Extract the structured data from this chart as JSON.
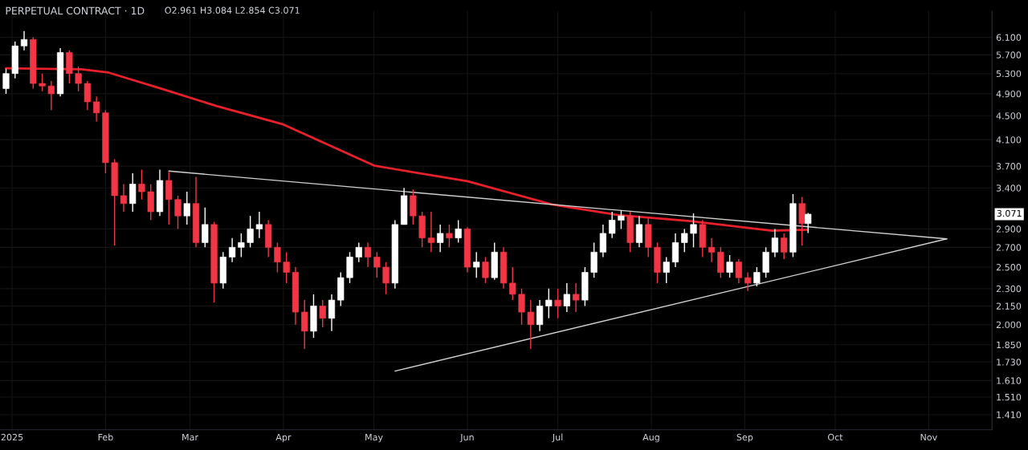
{
  "chart_data": {
    "type": "candlestick",
    "title": "PERPETUAL CONTRACT · 1D",
    "annotations": [
      "O2.961 H3.084 L2.854 C3.071",
      "3.071"
    ],
    "x": [
      "2024-12-30",
      "2025-01-02",
      "2025-01-05",
      "2025-01-08",
      "2025-01-11",
      "2025-01-14",
      "2025-01-17",
      "2025-01-20",
      "2025-01-23",
      "2025-01-26",
      "2025-01-29",
      "2025-02-01",
      "2025-02-04",
      "2025-02-07",
      "2025-02-10",
      "2025-02-13",
      "2025-02-16",
      "2025-02-19",
      "2025-02-22",
      "2025-02-25",
      "2025-02-28",
      "2025-03-03",
      "2025-03-06",
      "2025-03-09",
      "2025-03-12",
      "2025-03-15",
      "2025-03-18",
      "2025-03-21",
      "2025-03-24",
      "2025-03-27",
      "2025-03-30",
      "2025-04-02",
      "2025-04-05",
      "2025-04-08",
      "2025-04-11",
      "2025-04-14",
      "2025-04-17",
      "2025-04-20",
      "2025-04-23",
      "2025-04-26",
      "2025-04-29",
      "2025-05-02",
      "2025-05-05",
      "2025-05-08",
      "2025-05-11",
      "2025-05-14",
      "2025-05-17",
      "2025-05-20",
      "2025-05-23",
      "2025-05-26",
      "2025-05-29",
      "2025-06-01",
      "2025-06-04",
      "2025-06-07",
      "2025-06-10",
      "2025-06-13",
      "2025-06-16",
      "2025-06-19",
      "2025-06-22",
      "2025-06-25",
      "2025-06-28",
      "2025-07-01",
      "2025-07-04",
      "2025-07-07",
      "2025-07-10",
      "2025-07-13",
      "2025-07-16",
      "2025-07-19",
      "2025-07-22",
      "2025-07-25",
      "2025-07-28",
      "2025-07-31",
      "2025-08-03",
      "2025-08-06",
      "2025-08-09",
      "2025-08-12",
      "2025-08-15",
      "2025-08-18",
      "2025-08-21",
      "2025-08-24",
      "2025-08-27",
      "2025-08-30",
      "2025-09-02",
      "2025-09-05",
      "2025-09-08",
      "2025-09-11",
      "2025-09-14",
      "2025-09-17",
      "2025-09-20",
      "2025-09-22"
    ],
    "ohlc": [
      [
        5.0,
        5.4,
        4.9,
        5.3
      ],
      [
        5.3,
        6.0,
        5.2,
        5.9
      ],
      [
        5.9,
        6.25,
        5.8,
        6.05
      ],
      [
        6.05,
        6.1,
        5.0,
        5.1
      ],
      [
        5.1,
        5.3,
        4.95,
        5.05
      ],
      [
        5.05,
        5.15,
        4.6,
        4.9
      ],
      [
        4.9,
        5.85,
        4.85,
        5.75
      ],
      [
        5.75,
        5.8,
        5.1,
        5.3
      ],
      [
        5.3,
        5.45,
        4.95,
        5.1
      ],
      [
        5.1,
        5.15,
        4.6,
        4.75
      ],
      [
        4.75,
        4.85,
        4.4,
        4.55
      ],
      [
        4.55,
        4.6,
        3.6,
        3.75
      ],
      [
        3.75,
        3.8,
        2.72,
        3.3
      ],
      [
        3.3,
        3.45,
        3.1,
        3.2
      ],
      [
        3.2,
        3.6,
        3.1,
        3.45
      ],
      [
        3.45,
        3.65,
        3.25,
        3.35
      ],
      [
        3.35,
        3.45,
        3.0,
        3.1
      ],
      [
        3.1,
        3.65,
        3.05,
        3.5
      ],
      [
        3.5,
        3.62,
        2.95,
        3.25
      ],
      [
        3.25,
        3.3,
        2.9,
        3.05
      ],
      [
        3.05,
        3.35,
        2.95,
        3.2
      ],
      [
        3.2,
        3.55,
        2.7,
        2.75
      ],
      [
        2.75,
        3.15,
        2.7,
        2.95
      ],
      [
        2.95,
        2.98,
        2.18,
        2.35
      ],
      [
        2.35,
        2.65,
        2.3,
        2.6
      ],
      [
        2.6,
        2.8,
        2.55,
        2.7
      ],
      [
        2.7,
        2.85,
        2.6,
        2.75
      ],
      [
        2.75,
        3.05,
        2.7,
        2.9
      ],
      [
        2.9,
        3.1,
        2.8,
        2.95
      ],
      [
        2.95,
        3.0,
        2.6,
        2.7
      ],
      [
        2.7,
        2.75,
        2.45,
        2.55
      ],
      [
        2.55,
        2.65,
        2.35,
        2.45
      ],
      [
        2.45,
        2.5,
        2.0,
        2.1
      ],
      [
        2.1,
        2.2,
        1.82,
        1.95
      ],
      [
        1.95,
        2.25,
        1.9,
        2.15
      ],
      [
        2.15,
        2.2,
        1.98,
        2.05
      ],
      [
        2.05,
        2.25,
        1.95,
        2.2
      ],
      [
        2.2,
        2.45,
        2.15,
        2.4
      ],
      [
        2.4,
        2.65,
        2.35,
        2.6
      ],
      [
        2.6,
        2.75,
        2.55,
        2.7
      ],
      [
        2.7,
        2.75,
        2.5,
        2.6
      ],
      [
        2.6,
        2.65,
        2.4,
        2.5
      ],
      [
        2.5,
        2.55,
        2.25,
        2.35
      ],
      [
        2.35,
        3.0,
        2.3,
        2.95
      ],
      [
        2.95,
        3.4,
        2.95,
        3.3
      ],
      [
        3.3,
        3.38,
        2.95,
        3.05
      ],
      [
        3.05,
        3.1,
        2.7,
        2.8
      ],
      [
        2.8,
        3.1,
        2.65,
        2.75
      ],
      [
        2.75,
        2.95,
        2.65,
        2.85
      ],
      [
        2.85,
        2.95,
        2.7,
        2.8
      ],
      [
        2.8,
        3.0,
        2.75,
        2.9
      ],
      [
        2.9,
        2.92,
        2.45,
        2.5
      ],
      [
        2.5,
        2.65,
        2.4,
        2.55
      ],
      [
        2.55,
        2.6,
        2.35,
        2.4
      ],
      [
        2.4,
        2.75,
        2.38,
        2.65
      ],
      [
        2.65,
        2.7,
        2.3,
        2.35
      ],
      [
        2.35,
        2.5,
        2.2,
        2.25
      ],
      [
        2.25,
        2.3,
        2.0,
        2.1
      ],
      [
        2.1,
        2.2,
        1.82,
        2.0
      ],
      [
        2.0,
        2.2,
        1.95,
        2.15
      ],
      [
        2.15,
        2.3,
        2.05,
        2.2
      ],
      [
        2.2,
        2.3,
        2.05,
        2.15
      ],
      [
        2.15,
        2.35,
        2.1,
        2.25
      ],
      [
        2.25,
        2.35,
        2.1,
        2.2
      ],
      [
        2.2,
        2.5,
        2.15,
        2.45
      ],
      [
        2.45,
        2.75,
        2.4,
        2.65
      ],
      [
        2.65,
        2.95,
        2.6,
        2.85
      ],
      [
        2.85,
        3.1,
        2.8,
        3.0
      ],
      [
        3.0,
        3.12,
        2.9,
        3.05
      ],
      [
        3.05,
        3.1,
        2.65,
        2.75
      ],
      [
        2.75,
        3.05,
        2.7,
        2.95
      ],
      [
        2.95,
        3.02,
        2.6,
        2.7
      ],
      [
        2.7,
        2.75,
        2.35,
        2.45
      ],
      [
        2.45,
        2.6,
        2.35,
        2.55
      ],
      [
        2.55,
        2.85,
        2.5,
        2.75
      ],
      [
        2.75,
        2.9,
        2.65,
        2.85
      ],
      [
        2.85,
        3.08,
        2.7,
        2.95
      ],
      [
        2.95,
        3.0,
        2.6,
        2.7
      ],
      [
        2.7,
        2.8,
        2.55,
        2.65
      ],
      [
        2.65,
        2.7,
        2.4,
        2.45
      ],
      [
        2.45,
        2.62,
        2.4,
        2.55
      ],
      [
        2.55,
        2.58,
        2.35,
        2.4
      ],
      [
        2.4,
        2.45,
        2.28,
        2.35
      ],
      [
        2.35,
        2.5,
        2.32,
        2.45
      ],
      [
        2.45,
        2.7,
        2.4,
        2.65
      ],
      [
        2.65,
        2.9,
        2.6,
        2.8
      ],
      [
        2.8,
        2.85,
        2.58,
        2.65
      ],
      [
        2.65,
        3.32,
        2.6,
        3.2
      ],
      [
        3.2,
        3.28,
        2.72,
        2.961
      ],
      [
        2.961,
        3.084,
        2.854,
        3.071
      ]
    ],
    "colors": [
      "#ffffff",
      "#ffffff",
      "#ffffff",
      "#f23645",
      "#f23645",
      "#f23645",
      "#ffffff",
      "#f23645",
      "#f23645",
      "#f23645",
      "#f23645",
      "#f23645",
      "#f23645",
      "#f23645",
      "#ffffff",
      "#f23645",
      "#f23645",
      "#ffffff",
      "#f23645",
      "#f23645",
      "#ffffff",
      "#f23645",
      "#ffffff",
      "#f23645",
      "#ffffff",
      "#ffffff",
      "#ffffff",
      "#ffffff",
      "#ffffff",
      "#f23645",
      "#f23645",
      "#f23645",
      "#f23645",
      "#f23645",
      "#ffffff",
      "#f23645",
      "#ffffff",
      "#ffffff",
      "#ffffff",
      "#ffffff",
      "#f23645",
      "#f23645",
      "#f23645",
      "#ffffff",
      "#ffffff",
      "#f23645",
      "#f23645",
      "#f23645",
      "#ffffff",
      "#f23645",
      "#ffffff",
      "#f23645",
      "#ffffff",
      "#f23645",
      "#ffffff",
      "#f23645",
      "#f23645",
      "#f23645",
      "#f23645",
      "#ffffff",
      "#ffffff",
      "#f23645",
      "#ffffff",
      "#f23645",
      "#ffffff",
      "#ffffff",
      "#ffffff",
      "#ffffff",
      "#ffffff",
      "#f23645",
      "#ffffff",
      "#f23645",
      "#f23645",
      "#ffffff",
      "#ffffff",
      "#ffffff",
      "#ffffff",
      "#f23645",
      "#f23645",
      "#f23645",
      "#ffffff",
      "#f23645",
      "#f23645",
      "#ffffff",
      "#ffffff",
      "#ffffff",
      "#f23645",
      "#ffffff",
      "#f23645",
      "#ffffff"
    ],
    "series": [
      {
        "type": "line",
        "color": "#e8202a",
        "x": [
          "2024-12-30",
          "2025-01-24",
          "2025-02-02",
          "2025-02-20",
          "2025-03-10",
          "2025-04-01",
          "2025-05-01",
          "2025-05-09",
          "2025-06-01",
          "2025-06-29",
          "2025-07-21",
          "2025-08-14",
          "2025-09-10",
          "2025-09-22"
        ],
        "values": [
          5.41,
          5.39,
          5.32,
          4.99,
          4.67,
          4.35,
          3.71,
          3.65,
          3.49,
          3.19,
          3.06,
          2.99,
          2.88,
          2.89
        ]
      },
      {
        "type": "line",
        "color": "#d0d0d0",
        "x": [
          "2025-02-22",
          "2025-11-07"
        ],
        "values": [
          3.63,
          2.79
        ]
      },
      {
        "type": "line",
        "color": "#d0d0d0",
        "x": [
          "2025-05-08",
          "2025-11-07"
        ],
        "values": [
          1.67,
          2.79
        ]
      }
    ],
    "log": true,
    "ylim": [
      1.33,
      6.75
    ],
    "yticks": [
      {
        "value": 6.1,
        "label": "6.100"
      },
      {
        "value": 5.7,
        "label": "5.700"
      },
      {
        "value": 5.3,
        "label": "5.300"
      },
      {
        "value": 4.9,
        "label": "4.900"
      },
      {
        "value": 4.5,
        "label": "4.500"
      },
      {
        "value": 4.1,
        "label": "4.100"
      },
      {
        "value": 3.7,
        "label": "3.700"
      },
      {
        "value": 3.4,
        "label": "3.400"
      },
      {
        "value": 2.9,
        "label": "2.900"
      },
      {
        "value": 2.7,
        "label": "2.700"
      },
      {
        "value": 2.5,
        "label": "2.500"
      },
      {
        "value": 2.3,
        "label": "2.300"
      },
      {
        "value": 2.15,
        "label": "2.150"
      },
      {
        "value": 2.0,
        "label": "2.000"
      },
      {
        "value": 1.85,
        "label": "1.850"
      },
      {
        "value": 1.73,
        "label": "1.730"
      },
      {
        "value": 1.61,
        "label": "1.610"
      },
      {
        "value": 1.51,
        "label": "1.510"
      },
      {
        "value": 1.41,
        "label": "1.410"
      }
    ],
    "xlim": [
      "2024-12-28",
      "2025-11-22"
    ],
    "xticks": [
      {
        "value": "2025-01-01",
        "label": "2025"
      },
      {
        "value": "2025-02-01",
        "label": "Feb"
      },
      {
        "value": "2025-03-01",
        "label": "Mar"
      },
      {
        "value": "2025-04-01",
        "label": "Apr"
      },
      {
        "value": "2025-05-01",
        "label": "May"
      },
      {
        "value": "2025-06-01",
        "label": "Jun"
      },
      {
        "value": "2025-07-01",
        "label": "Jul"
      },
      {
        "value": "2025-08-01",
        "label": "Aug"
      },
      {
        "value": "2025-09-01",
        "label": "Sep"
      },
      {
        "value": "2025-10-01",
        "label": "Oct"
      },
      {
        "value": "2025-11-01",
        "label": "Nov"
      }
    ],
    "grid": true
  }
}
